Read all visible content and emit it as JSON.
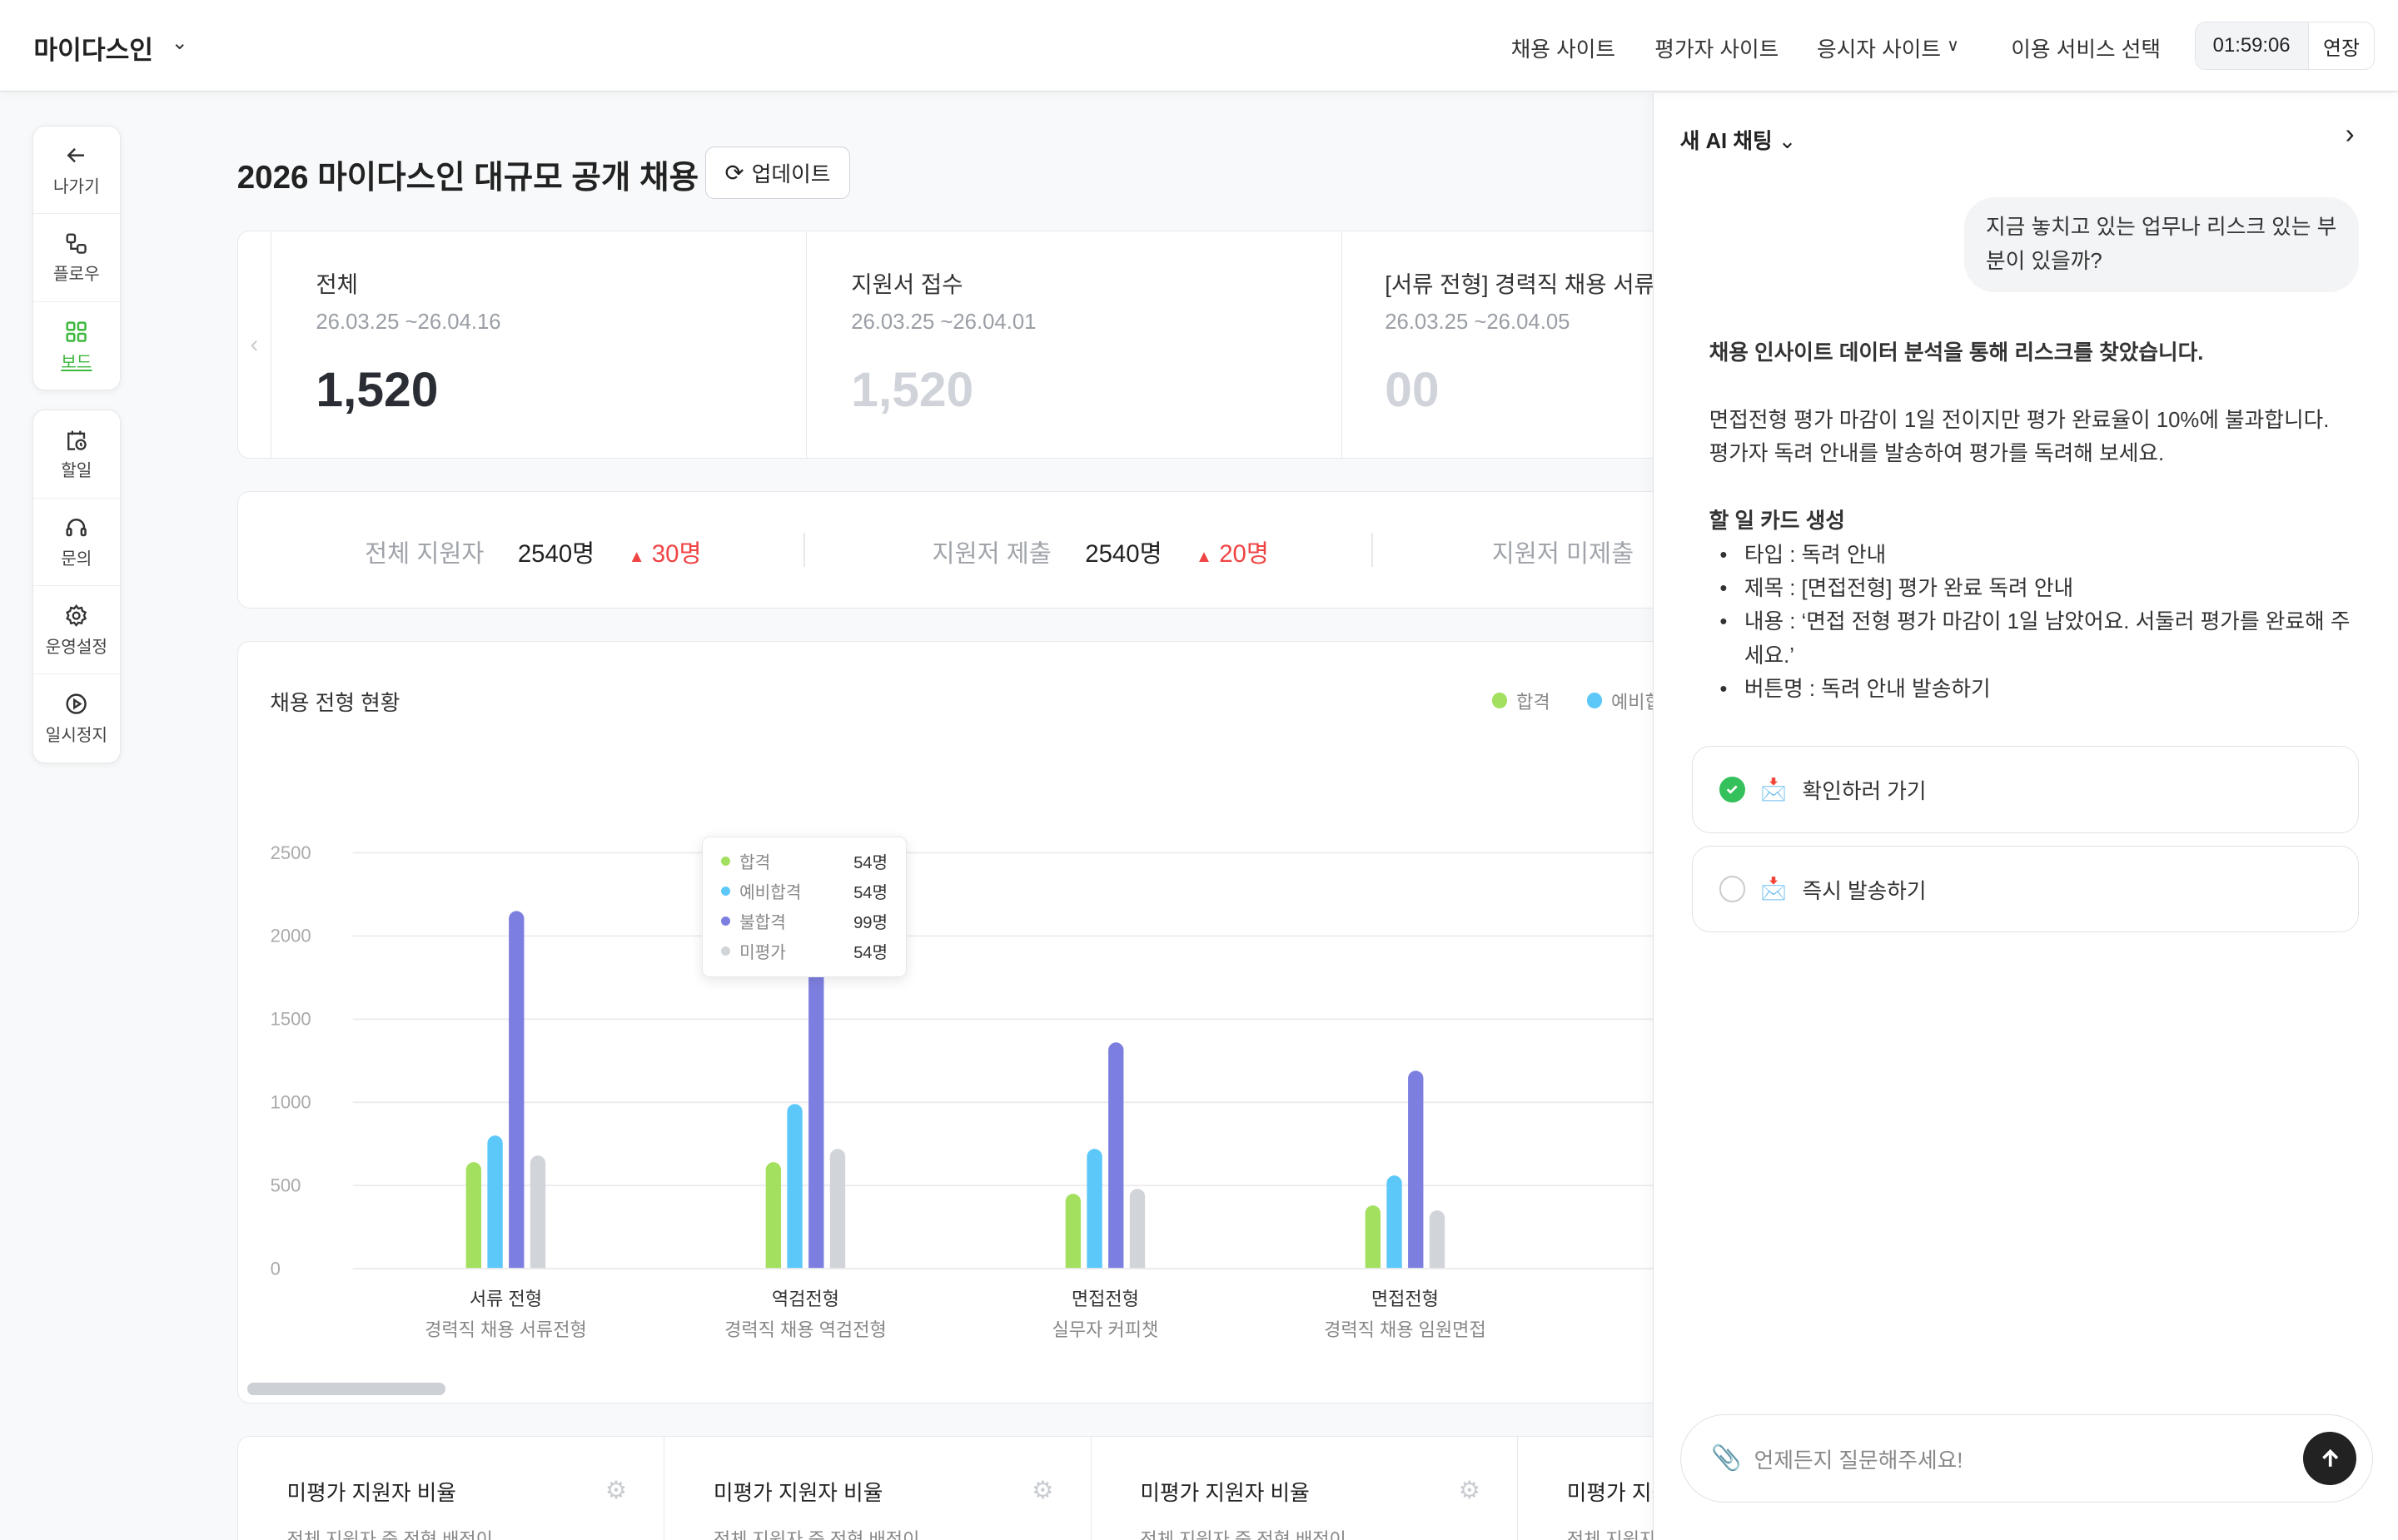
{
  "header": {
    "brand": "마이다스인",
    "nav": [
      "채용 사이트",
      "평가자 사이트",
      "응시자 사이트",
      "이용 서비스 선택"
    ],
    "timer": "01:59:06",
    "extend": "연장"
  },
  "sidebar": {
    "group1": [
      {
        "label": "나가기",
        "icon": "arrow-left-icon"
      },
      {
        "label": "플로우",
        "icon": "flow-icon"
      },
      {
        "label": "보드",
        "icon": "grid-icon",
        "active": true
      }
    ],
    "group2": [
      {
        "label": "할일",
        "icon": "calendar-clock-icon"
      },
      {
        "label": "문의",
        "icon": "headset-icon"
      },
      {
        "label": "운영설정",
        "icon": "gear-icon"
      },
      {
        "label": "일시정지",
        "icon": "play-circle-icon"
      }
    ]
  },
  "main": {
    "title": "2026 마이다스인 대규모 공개 채용",
    "update": "업데이트",
    "stats": [
      {
        "name": "전체",
        "date": "26.03.25 ~26.04.16",
        "value": "1,520"
      },
      {
        "name": "지원서 접수",
        "date": "26.03.25 ~26.04.01",
        "value": "1,520"
      },
      {
        "name": "[서류 전형] 경력직 채용 서류전형",
        "date": "26.03.25 ~26.04.05",
        "value": "00"
      }
    ],
    "summary": [
      {
        "label": "전체 지원자",
        "count": "2540명",
        "delta": "30명"
      },
      {
        "label": "지원저 제출",
        "count": "2540명",
        "delta": "20명"
      },
      {
        "label": "지원저 미제출"
      }
    ],
    "chart_title": "채용 전형 현황",
    "tooltip": [
      {
        "label": "합격",
        "value": "54명"
      },
      {
        "label": "예비합격",
        "value": "54명"
      },
      {
        "label": "불합격",
        "value": "99명"
      },
      {
        "label": "미평가",
        "value": "54명"
      }
    ],
    "bottom_cards": [
      {
        "name": "미평가 지원자 비율",
        "sub": "전체 지원자 중 전형 배정이"
      },
      {
        "name": "미평가 지원자 비율",
        "sub": "전체 지원자 중 전형 배정이"
      },
      {
        "name": "미평가 지원자 비율",
        "sub": "전체 지원자 중 전형 배정이"
      },
      {
        "name": "미평가 지원자 비율",
        "sub": "전체 지원자 중 전형 배정이"
      }
    ]
  },
  "chart_data": {
    "type": "bar",
    "title": "채용 전형 현황",
    "ylim": [
      0,
      2500
    ],
    "yticks": [
      0,
      500,
      1000,
      1500,
      2000,
      2500
    ],
    "grid": true,
    "legend": "top-right",
    "categories": [
      {
        "main": "서류 전형",
        "sub": "경력직 채용 서류전형"
      },
      {
        "main": "역검전형",
        "sub": "경력직 채용 역검전형"
      },
      {
        "main": "면접전형",
        "sub": "실무자 커피챗"
      },
      {
        "main": "면접전형",
        "sub": "경력직 채용 임원면접"
      }
    ],
    "series": [
      {
        "name": "합격",
        "color": "#a3e05f",
        "values": [
          640,
          640,
          450,
          380
        ]
      },
      {
        "name": "예비합격",
        "color": "#5cc8fa",
        "values": [
          800,
          990,
          720,
          560
        ]
      },
      {
        "name": "불합격",
        "color": "#7d7fe0",
        "values": [
          2150,
          2250,
          1360,
          1190
        ]
      },
      {
        "name": "미평가",
        "color": "#d1d4d9",
        "values": [
          680,
          720,
          480,
          350
        ]
      }
    ]
  },
  "ai": {
    "title": "새 AI 채팅",
    "question": "지금 놓치고 있는 업무나 리스크 있는 부분이 있을까?",
    "answer_head": "채용 인사이트 데이터 분석을 통해 리스크를 찾았습니다.",
    "answer_body1": "면접전형 평가 마감이 1일 전이지만 평가 완료율이 10%에 불과합니다.",
    "answer_body2": "평가자 독려 안내를 발송하여 평가를 독려해 보세요.",
    "todo_head": "할 일 카드 생성",
    "todo": [
      "타입 : 독려 안내",
      "제목 : [면접전형] 평가 완료 독려 안내",
      "내용 : ‘면접 전형 평가 마감이 1일 남았어요. 서둘러 평가를 완료해 주세요.’",
      "버튼명 : 독려 안내 발송하기"
    ],
    "options": [
      {
        "label": "확인하러 가기",
        "checked": true
      },
      {
        "label": "즉시 발송하기",
        "checked": false
      }
    ],
    "input_placeholder": "언제든지 질문해주세요!"
  }
}
